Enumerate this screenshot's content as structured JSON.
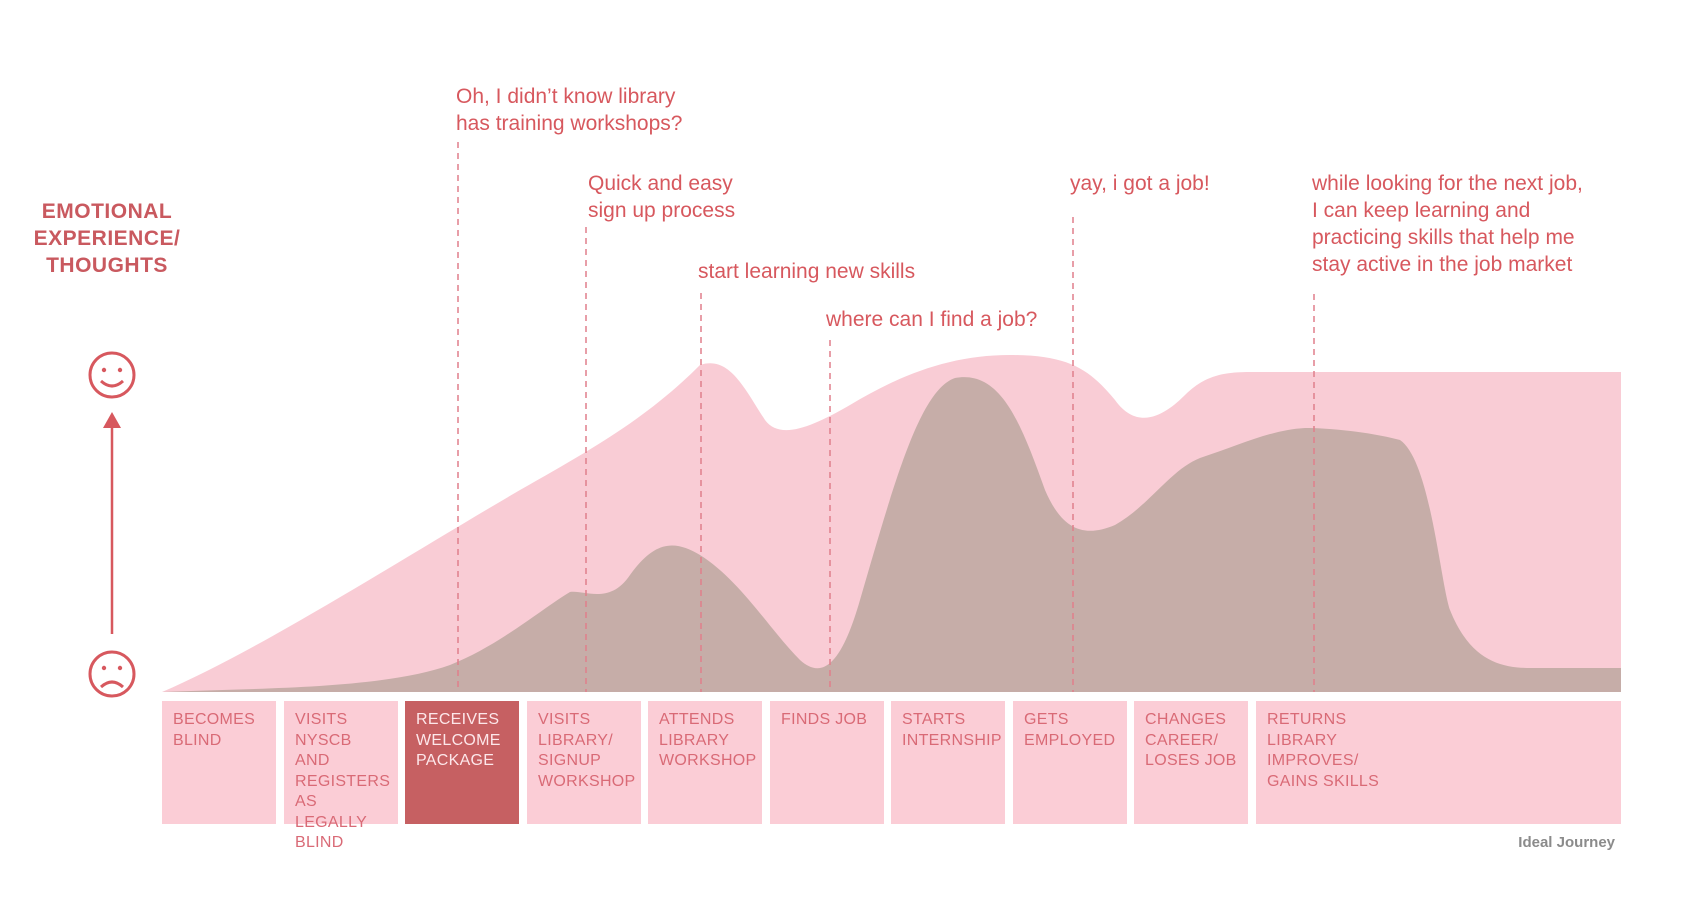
{
  "axis_title": "EMOTIONAL\nEXPERIENCE/\nTHOUGHTS",
  "icons": {
    "top": "smiley-happy-icon",
    "bottom": "smiley-sad-icon",
    "arrow": "up-arrow-icon"
  },
  "colors": {
    "accent": "#d7585e",
    "outer_area": "#f9ccd5",
    "inner_area": "#c6ada8",
    "stage_box": "#fbcdd6",
    "stage_box_active": "#c66062"
  },
  "quotes": [
    "Oh, I didn’t know library\nhas training workshops?",
    "Quick and easy\nsign up process",
    "start learning new skills",
    "where can I find a job?",
    "yay, i got a job!",
    "while looking for the next job,\nI can keep learning and\npracticing skills that help me\nstay active in the job market"
  ],
  "stages": [
    {
      "label": "BECOMES BLIND",
      "active": false
    },
    {
      "label": "VISITS NYSCB AND REGISTERS AS LEGALLY BLIND",
      "active": false
    },
    {
      "label": "RECEIVES WELCOME PACKAGE",
      "active": true
    },
    {
      "label": "VISITS LIBRARY/ SIGNUP WORKSHOP",
      "active": false
    },
    {
      "label": "ATTENDS LIBRARY WORKSHOP",
      "active": false
    },
    {
      "label": "FINDS JOB",
      "active": false
    },
    {
      "label": "STARTS INTERNSHIP",
      "active": false
    },
    {
      "label": "GETS EMPLOYED",
      "active": false
    },
    {
      "label": "CHANGES CAREER/ LOSES JOB",
      "active": false
    },
    {
      "label": "RETURNS LIBRARY IMPROVES/ GAINS SKILLS",
      "active": false
    }
  ],
  "caption": "Ideal Journey"
}
